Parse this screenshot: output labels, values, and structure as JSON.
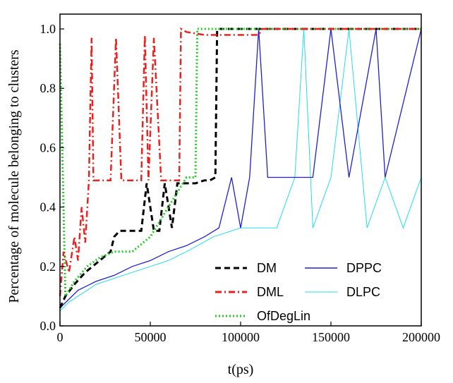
{
  "chart_data": {
    "type": "line",
    "title": "",
    "xlabel": "t(ps)",
    "ylabel": "Percentage of molecule belonging to clusters",
    "xlim": [
      0,
      200000
    ],
    "ylim": [
      0,
      1.05
    ],
    "xticks": [
      0,
      50000,
      100000,
      150000,
      200000
    ],
    "xtick_labels": [
      "0",
      "50000",
      "100000",
      "150000",
      "200000"
    ],
    "yticks": [
      0.0,
      0.2,
      0.4,
      0.6,
      0.8,
      1.0
    ],
    "ytick_labels": [
      "0.0",
      "0.2",
      "0.4",
      "0.6",
      "0.8",
      "1.0"
    ],
    "grid": false,
    "legend_position": "bottom-right",
    "series": [
      {
        "name": "DM",
        "color": "#000000",
        "style": "dashed",
        "x": [
          0,
          3000,
          8000,
          14000,
          18000,
          22000,
          28000,
          30000,
          33000,
          38000,
          45000,
          48000,
          52000,
          55000,
          58000,
          62000,
          65000,
          68000,
          75000,
          80000,
          83000,
          86000,
          87000,
          90000,
          200000
        ],
        "y": [
          0.06,
          0.1,
          0.14,
          0.18,
          0.2,
          0.22,
          0.25,
          0.3,
          0.32,
          0.32,
          0.32,
          0.48,
          0.32,
          0.32,
          0.48,
          0.33,
          0.48,
          0.48,
          0.48,
          0.49,
          0.49,
          0.5,
          1.0,
          1.0,
          1.0
        ]
      },
      {
        "name": "DML",
        "color": "#e8231f",
        "style": "dashdot",
        "x": [
          0,
          2000,
          5000,
          8000,
          10000,
          12000,
          14000,
          16000,
          17500,
          18500,
          21000,
          24000,
          28000,
          31000,
          34000,
          40000,
          45000,
          47000,
          49000,
          52000,
          56000,
          60000,
          66000,
          67000,
          70000,
          80000,
          110000,
          112000,
          130000,
          200000
        ],
        "y": [
          0.1,
          0.25,
          0.18,
          0.3,
          0.22,
          0.4,
          0.28,
          0.49,
          0.97,
          0.49,
          0.49,
          0.49,
          0.49,
          0.97,
          0.49,
          0.49,
          0.49,
          0.98,
          0.49,
          0.97,
          0.49,
          0.49,
          0.49,
          1.0,
          0.99,
          0.98,
          0.98,
          1.0,
          1.0,
          1.0
        ]
      },
      {
        "name": "DPPC",
        "color": "#1f1fd6",
        "style": "solid",
        "x": [
          0,
          5000,
          10000,
          20000,
          30000,
          40000,
          50000,
          60000,
          70000,
          80000,
          88000,
          95000,
          100000,
          105000,
          110000,
          115000,
          120000,
          130000,
          140000,
          150000,
          160000,
          175000,
          180000,
          200000
        ],
        "y": [
          0.06,
          0.09,
          0.12,
          0.15,
          0.17,
          0.2,
          0.22,
          0.25,
          0.27,
          0.3,
          0.33,
          0.5,
          0.33,
          0.5,
          1.0,
          0.5,
          0.5,
          0.5,
          0.5,
          1.0,
          0.5,
          1.0,
          0.5,
          1.0
        ]
      },
      {
        "name": "DLPC",
        "color": "#22ddee",
        "style": "solid-thin",
        "x": [
          0,
          5000,
          10000,
          20000,
          30000,
          40000,
          50000,
          60000,
          70000,
          85000,
          100000,
          120000,
          130000,
          135000,
          140000,
          150000,
          160000,
          170000,
          180000,
          190000,
          200000
        ],
        "y": [
          0.05,
          0.08,
          0.1,
          0.14,
          0.16,
          0.18,
          0.2,
          0.22,
          0.25,
          0.3,
          0.33,
          0.33,
          0.5,
          1.0,
          0.33,
          0.5,
          1.0,
          0.33,
          0.5,
          0.33,
          0.5
        ]
      },
      {
        "name": "OfDegLin",
        "color": "#22cc22",
        "style": "dotted",
        "x": [
          0,
          3000,
          8000,
          15000,
          22000,
          30000,
          40000,
          50000,
          60000,
          70000,
          75000,
          76000,
          80000,
          200000
        ],
        "y": [
          0.95,
          0.1,
          0.15,
          0.2,
          0.23,
          0.25,
          0.25,
          0.3,
          0.4,
          0.5,
          0.5,
          1.0,
          1.0,
          1.0
        ]
      }
    ]
  }
}
